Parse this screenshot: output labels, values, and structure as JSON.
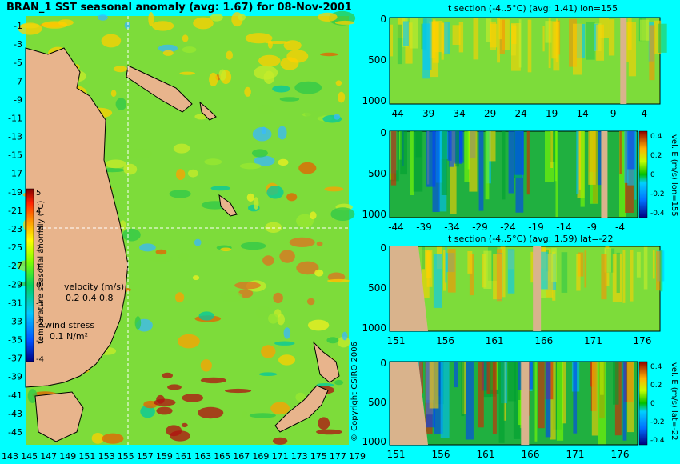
{
  "colors": {
    "background": "#00ffff",
    "land": "#d9b38c",
    "land_edge": "#000000"
  },
  "main_map": {
    "title": "BRAN_1 SST seasonal anomaly (avg: 1.67) for 08-Nov-2001",
    "y_ticks": [
      "-1",
      "-3",
      "-5",
      "-7",
      "-9",
      "-11",
      "-13",
      "-15",
      "-17",
      "-19",
      "-21",
      "-23",
      "-25",
      "-27",
      "-29",
      "-31",
      "-33",
      "-35",
      "-37",
      "-39",
      "-41",
      "-43",
      "-45"
    ],
    "x_ticks": [
      "143",
      "145",
      "147",
      "149",
      "151",
      "153",
      "155",
      "157",
      "159",
      "161",
      "163",
      "165",
      "167",
      "169",
      "171",
      "173",
      "175",
      "177",
      "179"
    ],
    "colorbar": {
      "label": "temperature seasonal anomaly (°C)",
      "ticks": [
        "5",
        "4",
        "3",
        "2",
        "1",
        "0",
        "-1",
        "-2",
        "-3",
        "-4"
      ],
      "range": [
        -4,
        5
      ]
    },
    "velocity_legend": {
      "label": "velocity (m/s)",
      "scale": "0.2 0.4 0.8"
    },
    "wind_legend": {
      "label": "wind stress",
      "value": "0.1 N/m²"
    },
    "copyright": "© Copyright CSIRO 2006"
  },
  "chart_data": [
    {
      "type": "heatmap",
      "title": "BRAN_1 SST seasonal anomaly (avg: 1.67) for 08-Nov-2001",
      "xlabel": "",
      "ylabel": "",
      "xlim": [
        142,
        180
      ],
      "ylim": [
        -45,
        0
      ],
      "color_range": [
        -4,
        5
      ],
      "crosshair": {
        "lon": 155,
        "lat": -22
      }
    },
    {
      "type": "heatmap",
      "title": "t section (-4..5°C) (avg: 1.41) lon=155",
      "x_ticks": [
        "-44",
        "-39",
        "-34",
        "-29",
        "-24",
        "-19",
        "-14",
        "-9",
        "-4"
      ],
      "y_ticks": [
        "0",
        "500",
        "1000"
      ],
      "xlim": [
        -45,
        0
      ],
      "ylim": [
        1050,
        0
      ]
    },
    {
      "type": "heatmap",
      "title": "",
      "x_ticks": [
        "-44",
        "-39",
        "-34",
        "-29",
        "-24",
        "-19",
        "-14",
        "-9",
        "-4"
      ],
      "y_ticks": [
        "0",
        "500",
        "1000"
      ],
      "colorbar_label": "vel. E (m/s) lon=155",
      "colorbar_ticks": [
        "0.4",
        "0.2",
        "0",
        "-0.2",
        "-0.4"
      ],
      "xlim": [
        -45,
        0
      ],
      "ylim": [
        1050,
        0
      ]
    },
    {
      "type": "heatmap",
      "title": "t section (-4..5°C) (avg: 1.59) lat=-22",
      "x_ticks": [
        "151",
        "156",
        "161",
        "166",
        "171",
        "176"
      ],
      "y_ticks": [
        "0",
        "500",
        "1000"
      ],
      "xlim": [
        150,
        180
      ],
      "ylim": [
        1050,
        0
      ]
    },
    {
      "type": "heatmap",
      "title": "",
      "x_ticks": [
        "151",
        "156",
        "161",
        "166",
        "171",
        "176"
      ],
      "y_ticks": [
        "0",
        "500",
        "1000"
      ],
      "colorbar_label": "vel. E (m/s) lat=-22",
      "colorbar_ticks": [
        "0.4",
        "0.2",
        "0",
        "-0.2",
        "-0.4"
      ],
      "xlim": [
        150,
        180
      ],
      "ylim": [
        1050,
        0
      ]
    }
  ]
}
